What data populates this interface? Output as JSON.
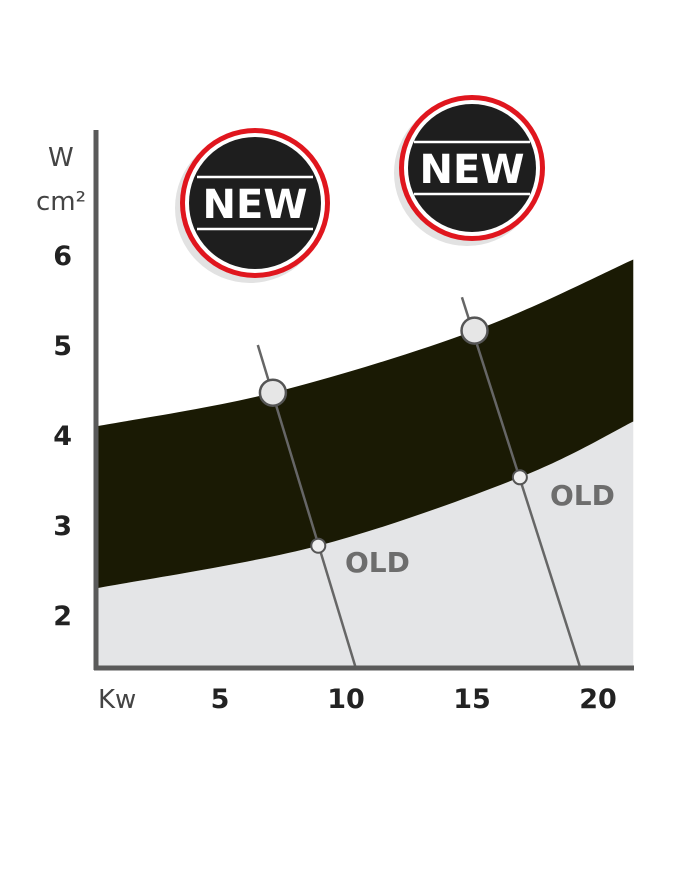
{
  "chart_data": {
    "type": "area",
    "xlabel": "Kw",
    "ylabel": [
      "W",
      "cm²"
    ],
    "x_ticks": [
      5,
      10,
      15,
      20
    ],
    "y_ticks": [
      2,
      3,
      4,
      5,
      6
    ],
    "xlim": [
      0,
      21.4
    ],
    "ylim": [
      1.4,
      7.2
    ],
    "grid": false,
    "band_upper": [
      [
        0.16,
        4.1
      ],
      [
        7.1,
        4.47
      ],
      [
        15.1,
        5.16
      ],
      [
        21.4,
        5.95
      ]
    ],
    "band_lower": [
      [
        0.16,
        2.3
      ],
      [
        8.9,
        2.77
      ],
      [
        16.9,
        3.53
      ],
      [
        21.4,
        4.15
      ]
    ],
    "lines": [
      {
        "from": [
          6.5,
          5.0
        ],
        "to": [
          10.4,
          1.4
        ],
        "new_point": [
          7.1,
          4.47
        ],
        "old_point": [
          8.9,
          2.77
        ]
      },
      {
        "from": [
          14.6,
          5.53
        ],
        "to": [
          19.3,
          1.41
        ],
        "new_point": [
          15.1,
          5.16
        ],
        "old_point": [
          16.9,
          3.53
        ]
      }
    ],
    "annotations": {
      "new_badge": "NEW",
      "old_label": "OLD"
    },
    "colors": {
      "band": "#1a1a04",
      "below_band": "#e4e5e7",
      "badge_ring": "#e0161e",
      "badge_fill": "#1e1e1e",
      "axis": "#5a5a5a",
      "old_text": "#6d6d6d"
    }
  }
}
